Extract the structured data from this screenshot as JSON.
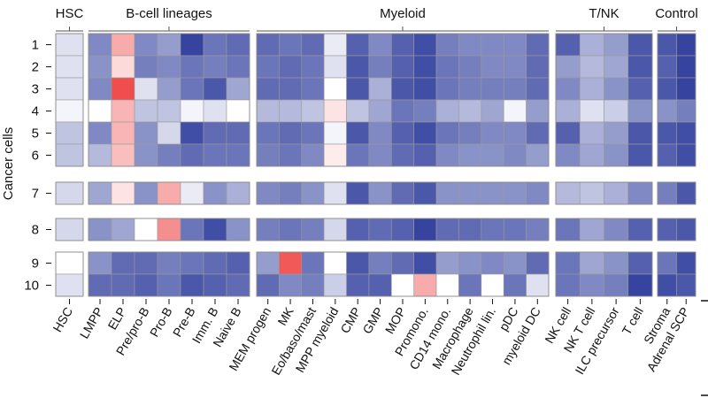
{
  "chart_data": {
    "type": "heatmap",
    "ylabel": "Cancer cells",
    "row_labels": [
      "1",
      "2",
      "3",
      "4",
      "5",
      "6",
      "7",
      "8",
      "9",
      "10"
    ],
    "row_blocks": [
      [
        0,
        6
      ],
      [
        6,
        7
      ],
      [
        7,
        8
      ],
      [
        8,
        10
      ]
    ],
    "groups": [
      {
        "name": "HSC",
        "columns": [
          "HSC"
        ]
      },
      {
        "name": "B-cell lineages",
        "columns": [
          "LMPP",
          "ELP",
          "Pre/pro-B",
          "Pro-B",
          "Pre-B",
          "Imm. B",
          "Naive B"
        ]
      },
      {
        "name": "Myeloid",
        "columns": [
          "MEM progen",
          "MK",
          "Eo/baso/mast",
          "MPP myeloid",
          "CMP",
          "GMP",
          "MOP",
          "Promono.",
          "CD14 mono.",
          "Macrophage",
          "Neutrophil lin.",
          "pDC",
          "myeloid DC"
        ]
      },
      {
        "name": "T/NK",
        "columns": [
          "NK cell",
          "NK T cell",
          "ILC precursor",
          "T cell"
        ]
      },
      {
        "name": "Control",
        "columns": [
          "Stroma",
          "Adrenal SCP"
        ]
      }
    ],
    "scale": {
      "range": [
        -1,
        1
      ],
      "low_color": "#2b3a9b",
      "mid_color": "#ffffff",
      "high_color": "#ef4545"
    },
    "values": [
      [
        -0.15,
        -0.6,
        0.45,
        -0.6,
        -0.5,
        -0.95,
        -0.7,
        -0.75,
        -0.75,
        -0.7,
        -0.75,
        -0.1,
        -0.8,
        -0.6,
        -0.8,
        -0.9,
        -0.65,
        -0.6,
        -0.6,
        -0.6,
        -0.75,
        -0.8,
        -0.4,
        -0.5,
        -0.85,
        -0.85,
        -0.95
      ],
      [
        -0.15,
        -0.55,
        0.2,
        -0.65,
        -0.6,
        -0.7,
        -0.65,
        -0.7,
        -0.7,
        -0.75,
        -0.7,
        -0.15,
        -0.85,
        -0.65,
        -0.8,
        -0.9,
        -0.7,
        -0.65,
        -0.6,
        -0.6,
        -0.75,
        -0.5,
        -0.35,
        -0.45,
        -0.85,
        -0.8,
        -0.95
      ],
      [
        -0.15,
        -0.6,
        0.95,
        -0.15,
        -0.5,
        -0.7,
        -0.85,
        -0.45,
        -0.75,
        -0.75,
        -0.7,
        0.0,
        -0.85,
        -0.4,
        -0.85,
        -0.9,
        -0.7,
        -0.65,
        -0.65,
        -0.65,
        -0.75,
        -0.6,
        -0.4,
        -0.55,
        -0.8,
        -0.85,
        -0.95
      ],
      [
        -0.05,
        0.0,
        0.4,
        -0.3,
        -0.3,
        -0.05,
        -0.15,
        0.0,
        -0.35,
        -0.35,
        -0.3,
        0.15,
        -0.3,
        -0.45,
        -0.7,
        -0.65,
        -0.4,
        -0.35,
        -0.45,
        -0.05,
        -0.5,
        -0.4,
        -0.15,
        -0.25,
        -0.55,
        -0.55,
        -0.65
      ],
      [
        -0.3,
        -0.6,
        0.4,
        -0.55,
        -0.2,
        -0.9,
        -0.75,
        -0.75,
        -0.7,
        -0.75,
        -0.7,
        -0.05,
        -0.85,
        -0.6,
        -0.8,
        -0.9,
        -0.7,
        -0.65,
        -0.6,
        -0.6,
        -0.75,
        -0.8,
        -0.4,
        -0.5,
        -0.85,
        -0.85,
        -0.9
      ],
      [
        -0.3,
        -0.35,
        0.35,
        -0.55,
        -0.65,
        -0.75,
        -0.7,
        -0.7,
        -0.65,
        -0.7,
        -0.6,
        0.1,
        -0.7,
        -0.6,
        -0.75,
        -0.8,
        -0.6,
        -0.55,
        -0.55,
        -0.6,
        -0.5,
        -0.6,
        -0.45,
        -0.55,
        -0.85,
        -0.8,
        -0.9
      ],
      [
        -0.2,
        -0.45,
        0.15,
        -0.55,
        0.45,
        -0.1,
        -0.55,
        -0.4,
        -0.6,
        -0.65,
        -0.55,
        -0.15,
        -0.85,
        -0.55,
        -0.75,
        -0.85,
        -0.55,
        -0.55,
        -0.55,
        -0.55,
        -0.6,
        -0.35,
        -0.3,
        -0.4,
        -0.6,
        -0.65,
        -0.85
      ],
      [
        -0.2,
        -0.55,
        -0.45,
        0.0,
        0.6,
        -0.7,
        -0.9,
        -0.55,
        -0.65,
        -0.7,
        -0.65,
        -0.2,
        -0.8,
        -0.75,
        -0.8,
        -0.95,
        -0.75,
        -0.75,
        -0.7,
        -0.7,
        -0.65,
        -0.7,
        -0.45,
        -0.6,
        -0.8,
        -0.8,
        -0.85
      ],
      [
        0.0,
        -0.55,
        -0.75,
        -0.75,
        -0.65,
        -0.7,
        -0.75,
        -0.8,
        -0.5,
        0.9,
        -0.7,
        0.0,
        -0.85,
        -0.65,
        -0.75,
        -0.9,
        -0.5,
        -0.55,
        -0.6,
        -0.55,
        -0.75,
        -0.7,
        -0.45,
        -0.55,
        -0.8,
        -0.7,
        -0.9
      ],
      [
        -0.15,
        -0.75,
        -0.75,
        -0.8,
        -0.7,
        -0.85,
        -0.8,
        -0.75,
        -0.75,
        -0.6,
        -0.65,
        -0.25,
        -0.8,
        -0.8,
        0.0,
        0.45,
        0.0,
        -0.7,
        0.0,
        -0.7,
        -0.15,
        -0.7,
        -0.6,
        -0.65,
        -0.95,
        -0.9,
        -0.85
      ]
    ]
  }
}
